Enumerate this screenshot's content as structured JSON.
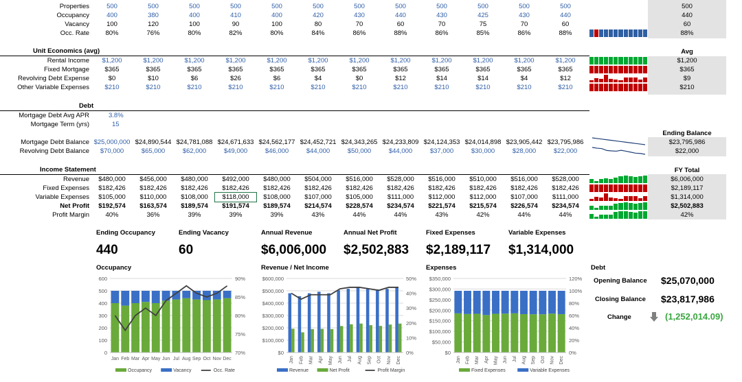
{
  "months": [
    "Jan",
    "Feb",
    "Mar",
    "Apr",
    "May",
    "Jun",
    "Jul",
    "Aug",
    "Sep",
    "Oct",
    "Nov",
    "Dec"
  ],
  "colors": {
    "blue": "#2f5ea8",
    "spark_blue": "#2e5fa3",
    "spark_red": "#c00000",
    "spark_green": "#00a832",
    "green_bar": "#6aaa3b",
    "blue_bar": "#3a6fc6",
    "change_green": "#3aa640"
  },
  "property": {
    "rows": [
      {
        "label": "Properties",
        "values": [
          "500",
          "500",
          "500",
          "500",
          "500",
          "500",
          "500",
          "500",
          "500",
          "500",
          "500",
          "500"
        ],
        "summary": "500",
        "blue": true
      },
      {
        "label": "Occupancy",
        "values": [
          "400",
          "380",
          "400",
          "410",
          "400",
          "420",
          "430",
          "440",
          "430",
          "425",
          "430",
          "440"
        ],
        "summary": "440",
        "blue": true
      },
      {
        "label": "Vacancy",
        "values": [
          "100",
          "120",
          "100",
          "90",
          "100",
          "80",
          "70",
          "60",
          "70",
          "75",
          "70",
          "60"
        ],
        "summary": "60",
        "blue": false
      },
      {
        "label": "Occ. Rate",
        "values": [
          "80%",
          "76%",
          "80%",
          "82%",
          "80%",
          "84%",
          "86%",
          "88%",
          "86%",
          "85%",
          "86%",
          "88%"
        ],
        "summary": "88%",
        "blue": false
      }
    ]
  },
  "unit_economics": {
    "title": "Unit Economics (avg)",
    "summary_header": "Avg",
    "rows": [
      {
        "label": "Rental Income",
        "values": [
          "$1,200",
          "$1,200",
          "$1,200",
          "$1,200",
          "$1,200",
          "$1,200",
          "$1,200",
          "$1,200",
          "$1,200",
          "$1,200",
          "$1,200",
          "$1,200"
        ],
        "summary": "$1,200",
        "blue": true
      },
      {
        "label": "Fixed Mortgage",
        "values": [
          "$365",
          "$365",
          "$365",
          "$365",
          "$365",
          "$365",
          "$365",
          "$365",
          "$365",
          "$365",
          "$365",
          "$365"
        ],
        "summary": "$365",
        "blue": false
      },
      {
        "label": "Revolving Debt Expense",
        "values": [
          "$0",
          "$10",
          "$6",
          "$26",
          "$6",
          "$4",
          "$0",
          "$12",
          "$14",
          "$14",
          "$4",
          "$12"
        ],
        "summary": "$9",
        "blue": false
      },
      {
        "label": "Other Variable Expenses",
        "values": [
          "$210",
          "$210",
          "$210",
          "$210",
          "$210",
          "$210",
          "$210",
          "$210",
          "$210",
          "$210",
          "$210",
          "$210"
        ],
        "summary": "$210",
        "blue": true
      }
    ]
  },
  "debt": {
    "title": "Debt",
    "apr_label": "Mortgage Debt Avg  APR",
    "apr_value": "3.8%",
    "term_label": "Mortgage Term (yrs)",
    "term_value": "15",
    "summary_header": "Ending Balance",
    "rows": [
      {
        "label": "Mortgage Debt Balance",
        "values": [
          "$25,000,000",
          "$24,890,544",
          "$24,781,088",
          "$24,671,633",
          "$24,562,177",
          "$24,452,721",
          "$24,343,265",
          "$24,233,809",
          "$24,124,353",
          "$24,014,898",
          "$23,905,442",
          "$23,795,986"
        ],
        "summary": "$23,795,986",
        "blue_first": true
      },
      {
        "label": "Revolving Debt Balance",
        "values": [
          "$70,000",
          "$65,000",
          "$62,000",
          "$49,000",
          "$46,000",
          "$44,000",
          "$50,000",
          "$44,000",
          "$37,000",
          "$30,000",
          "$28,000",
          "$22,000"
        ],
        "summary": "$22,000",
        "blue_all": true
      }
    ]
  },
  "income": {
    "title": "Income Statement",
    "summary_header": "FY Total",
    "rows": [
      {
        "label": "Revenue",
        "values": [
          "$480,000",
          "$456,000",
          "$480,000",
          "$492,000",
          "$480,000",
          "$504,000",
          "$516,000",
          "$528,000",
          "$516,000",
          "$510,000",
          "$516,000",
          "$528,000"
        ],
        "summary": "$6,006,000",
        "bold": false
      },
      {
        "label": "Fixed Expenses",
        "values": [
          "$182,426",
          "$182,426",
          "$182,426",
          "$182,426",
          "$182,426",
          "$182,426",
          "$182,426",
          "$182,426",
          "$182,426",
          "$182,426",
          "$182,426",
          "$182,426"
        ],
        "summary": "$2,189,117",
        "bold": false
      },
      {
        "label": "Variable Expenses",
        "values": [
          "$105,000",
          "$110,000",
          "$108,000",
          "$118,000",
          "$108,000",
          "$107,000",
          "$105,000",
          "$111,000",
          "$112,000",
          "$112,000",
          "$107,000",
          "$111,000"
        ],
        "summary": "$1,314,000",
        "bold": false
      },
      {
        "label": "Net Profit",
        "values": [
          "$192,574",
          "$163,574",
          "$189,574",
          "$191,574",
          "$189,574",
          "$214,574",
          "$228,574",
          "$234,574",
          "$221,574",
          "$215,574",
          "$226,574",
          "$234,574"
        ],
        "summary": "$2,502,883",
        "bold": true
      },
      {
        "label": "Profit Margin",
        "values": [
          "40%",
          "36%",
          "39%",
          "39%",
          "39%",
          "43%",
          "44%",
          "44%",
          "43%",
          "42%",
          "44%",
          "44%"
        ],
        "summary": "42%",
        "bold": false
      }
    ]
  },
  "kpis": [
    {
      "label": "Ending Occupancy",
      "value": "440"
    },
    {
      "label": "Ending Vacancy",
      "value": "60"
    },
    {
      "label": "Annual Revenue",
      "value": "$6,006,000"
    },
    {
      "label": "Annual Net Profit",
      "value": "$2,502,883"
    },
    {
      "label": "Fixed Expenses",
      "value": "$2,189,117"
    },
    {
      "label": "Variable Expenses",
      "value": "$1,314,000"
    }
  ],
  "debt_panel": {
    "title": "Debt",
    "opening_label": "Opening Balance",
    "opening_value": "$25,070,000",
    "closing_label": "Closing Balance",
    "closing_value": "$23,817,986",
    "change_label": "Change",
    "change_value": "(1,252,014.09)",
    "change_icon": "down-arrow-icon"
  },
  "chart_data": [
    {
      "type": "bar",
      "title": "Occupancy",
      "categories": [
        "Jan",
        "Feb",
        "Mar",
        "Apr",
        "May",
        "Jun",
        "Jul",
        "Aug",
        "Sep",
        "Oct",
        "Nov",
        "Dec"
      ],
      "stacked": true,
      "series": [
        {
          "name": "Occupancy",
          "kind": "bar",
          "values": [
            400,
            380,
            400,
            410,
            400,
            420,
            430,
            440,
            430,
            425,
            430,
            440
          ]
        },
        {
          "name": "Vacancy",
          "kind": "bar",
          "values": [
            100,
            120,
            100,
            90,
            100,
            80,
            70,
            60,
            70,
            75,
            70,
            60
          ]
        },
        {
          "name": "Occ. Rate",
          "kind": "line",
          "axis": "right",
          "values": [
            80,
            76,
            80,
            82,
            80,
            84,
            86,
            88,
            86,
            85,
            86,
            88
          ]
        }
      ],
      "ylim": [
        0,
        600
      ],
      "yticks": [
        "0",
        "100",
        "200",
        "300",
        "400",
        "500",
        "600"
      ],
      "y2lim": [
        70,
        90
      ],
      "y2ticks": [
        "70%",
        "75%",
        "80%",
        "85%",
        "90%"
      ],
      "legend": "bottom"
    },
    {
      "type": "bar",
      "title": "Revenue / Net Income",
      "categories": [
        "Jan",
        "Feb",
        "Mar",
        "Apr",
        "May",
        "Jun",
        "Jul",
        "Aug",
        "Sep",
        "Oct",
        "Nov",
        "Dec"
      ],
      "stacked": false,
      "series": [
        {
          "name": "Revenue",
          "kind": "bar",
          "values": [
            480000,
            456000,
            480000,
            492000,
            480000,
            504000,
            516000,
            528000,
            516000,
            510000,
            516000,
            528000
          ]
        },
        {
          "name": "Net Profit",
          "kind": "bar",
          "values": [
            192574,
            163574,
            189574,
            191574,
            189574,
            214574,
            228574,
            234574,
            221574,
            215574,
            226574,
            234574
          ]
        },
        {
          "name": "Profit Margin",
          "kind": "line",
          "axis": "right",
          "values": [
            40,
            36,
            39,
            39,
            39,
            43,
            44,
            44,
            43,
            42,
            44,
            44
          ]
        }
      ],
      "ylim": [
        0,
        600000
      ],
      "yticks": [
        "$0",
        "$100,000",
        "$200,000",
        "$300,000",
        "$400,000",
        "$500,000",
        "$600,000"
      ],
      "y2lim": [
        0,
        50
      ],
      "y2ticks": [
        "0%",
        "10%",
        "20%",
        "30%",
        "40%",
        "50%"
      ],
      "legend": "bottom"
    },
    {
      "type": "bar",
      "title": "Expenses",
      "categories": [
        "Jan",
        "Feb",
        "Mar",
        "Apr",
        "May",
        "Jun",
        "Jul",
        "Aug",
        "Sep",
        "Oct",
        "Nov",
        "Dec"
      ],
      "stacked": true,
      "percent": true,
      "series": [
        {
          "name": "Fixed Expenses",
          "kind": "bar",
          "values": [
            182426,
            182426,
            182426,
            182426,
            182426,
            182426,
            182426,
            182426,
            182426,
            182426,
            182426,
            182426
          ]
        },
        {
          "name": "Variable Expenses",
          "kind": "bar",
          "values": [
            105000,
            110000,
            108000,
            118000,
            108000,
            107000,
            105000,
            111000,
            112000,
            112000,
            107000,
            111000
          ]
        }
      ],
      "ylim": [
        0,
        350000
      ],
      "yticks": [
        "$0",
        "$50,000",
        "$100,000",
        "$150,000",
        "$200,000",
        "$250,000",
        "$300,000",
        "$350,000"
      ],
      "y2lim": [
        0,
        120
      ],
      "y2ticks": [
        "0%",
        "20%",
        "40%",
        "60%",
        "80%",
        "100%",
        "120%"
      ],
      "legend": "bottom"
    }
  ]
}
